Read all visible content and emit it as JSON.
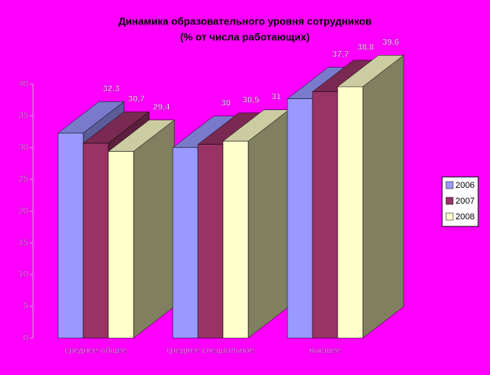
{
  "chart_data": {
    "type": "bar3d",
    "title": "Динамика образовательного уровня сотрудников",
    "subtitle": "(% от числа работающих)",
    "categories": [
      "среднее общее",
      "среднее специальное",
      "высшее"
    ],
    "series": [
      {
        "name": "2006",
        "color": "#9999ff",
        "values": [
          32.3,
          30,
          37.7
        ],
        "value_labels": [
          "32,3",
          "30",
          "37,7"
        ]
      },
      {
        "name": "2007",
        "color": "#993366",
        "values": [
          30.7,
          30.5,
          38.8
        ],
        "value_labels": [
          "30,7",
          "30,5",
          "38,8"
        ]
      },
      {
        "name": "2008",
        "color": "#ffffcc",
        "values": [
          29.4,
          31,
          39.6
        ],
        "value_labels": [
          "29,4",
          "31",
          "39,6"
        ]
      }
    ],
    "ylim": [
      0,
      40
    ],
    "yticks": [
      0,
      5,
      10,
      15,
      20,
      25,
      30,
      35,
      40
    ],
    "legend": "right"
  }
}
